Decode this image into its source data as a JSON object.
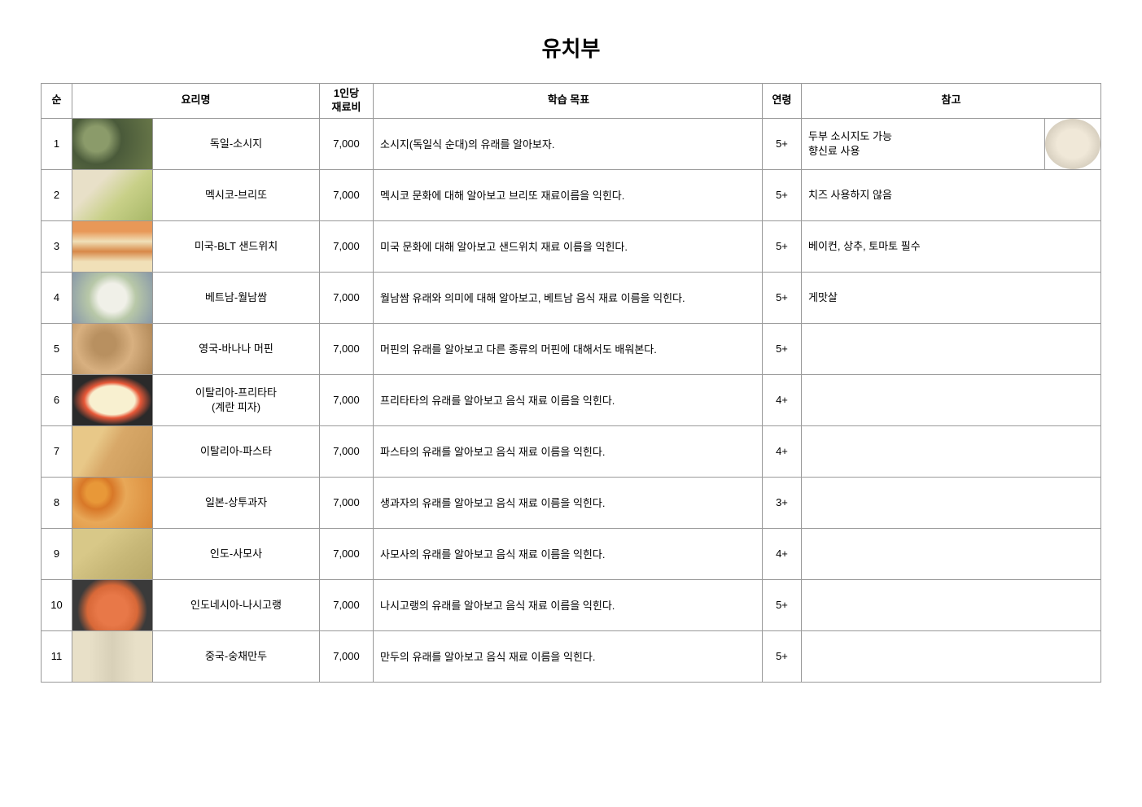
{
  "title": "유치부",
  "headers": {
    "num": "순",
    "name": "요리명",
    "cost": "1인당\n재료비",
    "goal": "학습 목표",
    "age": "연령",
    "note": "참고"
  },
  "rows": [
    {
      "num": "1",
      "name": "독일-소시지",
      "cost": "7,000",
      "goal": "소시지(독일식 순대)의 유래를 알아보자.",
      "age": "5+",
      "note": "두부 소시지도 가능\n향신료 사용",
      "has_ref_img": true
    },
    {
      "num": "2",
      "name": "멕시코-브리또",
      "cost": "7,000",
      "goal": "멕시코 문화에 대해 알아보고 브리또 재료이름을 익힌다.",
      "age": "5+",
      "note": "치즈 사용하지 않음",
      "has_ref_img": false
    },
    {
      "num": "3",
      "name": "미국-BLT 샌드위치",
      "cost": "7,000",
      "goal": "미국 문화에 대해 알아보고 샌드위치 재료 이름을 익힌다.",
      "age": "5+",
      "note": "베이컨, 상추, 토마토 필수",
      "has_ref_img": false
    },
    {
      "num": "4",
      "name": "베트남-월남쌈",
      "cost": "7,000",
      "goal": "월남쌈 유래와 의미에 대해 알아보고, 베트남 음식 재료 이름을 익힌다.",
      "age": "5+",
      "note": "게맛살",
      "has_ref_img": false
    },
    {
      "num": "5",
      "name": "영국-바나나 머핀",
      "cost": "7,000",
      "goal": "머핀의 유래를 알아보고 다른 종류의 머핀에 대해서도 배워본다.",
      "age": "5+",
      "note": "",
      "has_ref_img": false
    },
    {
      "num": "6",
      "name": "이탈리아-프리타타\n(계란 피자)",
      "cost": "7,000",
      "goal": "프리타타의 유래를 알아보고 음식 재료 이름을 익힌다.",
      "age": "4+",
      "note": "",
      "has_ref_img": false
    },
    {
      "num": "7",
      "name": "이탈리아-파스타",
      "cost": "7,000",
      "goal": "파스타의 유래를 알아보고 음식 재료 이름을 익힌다.",
      "age": "4+",
      "note": "",
      "has_ref_img": false
    },
    {
      "num": "8",
      "name": "일본-상투과자",
      "cost": "7,000",
      "goal": "생과자의 유래를 알아보고 음식 재료 이름을 익힌다.",
      "age": "3+",
      "note": "",
      "has_ref_img": false
    },
    {
      "num": "9",
      "name": "인도-사모사",
      "cost": "7,000",
      "goal": "사모사의 유래를 알아보고 음식 재료 이름을 익힌다.",
      "age": "4+",
      "note": "",
      "has_ref_img": false
    },
    {
      "num": "10",
      "name": "인도네시아-나시고랭",
      "cost": "7,000",
      "goal": "나시고랭의 유래를 알아보고 음식 재료 이름을 익힌다.",
      "age": "5+",
      "note": "",
      "has_ref_img": false
    },
    {
      "num": "11",
      "name": "중국-숭채만두",
      "cost": "7,000",
      "goal": "만두의 유래를 알아보고 음식 재료 이름을 익힌다.",
      "age": "5+",
      "note": "",
      "has_ref_img": false
    }
  ]
}
